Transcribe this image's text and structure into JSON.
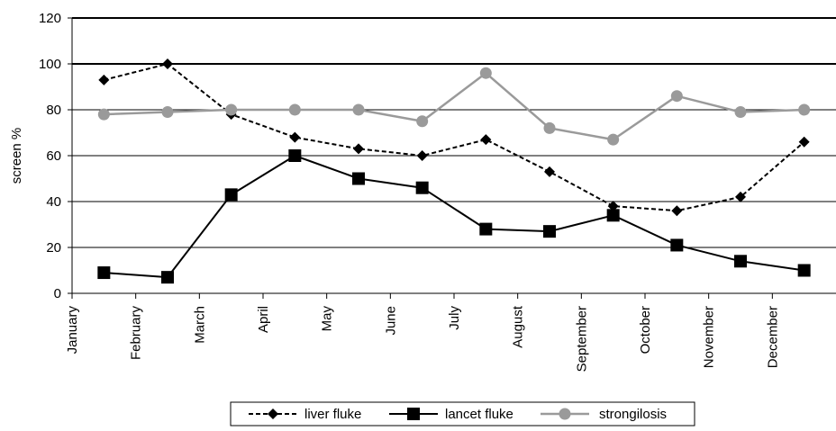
{
  "chart_data": {
    "type": "line",
    "title": "",
    "xlabel": "",
    "ylabel": "screen %",
    "ylim": [
      0,
      120
    ],
    "yticks": [
      0,
      20,
      40,
      60,
      80,
      100,
      120
    ],
    "categories": [
      "January",
      "February",
      "March",
      "April",
      "May",
      "June",
      "July",
      "August",
      "September",
      "October",
      "November",
      "December"
    ],
    "grid": "horizontal",
    "legend_position": "bottom",
    "series": [
      {
        "name": "liver fluke",
        "style": "dashed",
        "marker": "diamond",
        "color": "#000000",
        "values": [
          93,
          100,
          78,
          68,
          63,
          60,
          67,
          53,
          38,
          36,
          42,
          66
        ]
      },
      {
        "name": "lancet fluke",
        "style": "solid",
        "marker": "square",
        "color": "#000000",
        "values": [
          9,
          7,
          43,
          60,
          50,
          46,
          28,
          27,
          34,
          21,
          14,
          10
        ]
      },
      {
        "name": "strongilosis",
        "style": "solid",
        "marker": "circle",
        "color": "#9a9a9a",
        "values": [
          78,
          79,
          80,
          80,
          80,
          75,
          96,
          72,
          67,
          86,
          79,
          80
        ]
      }
    ]
  }
}
